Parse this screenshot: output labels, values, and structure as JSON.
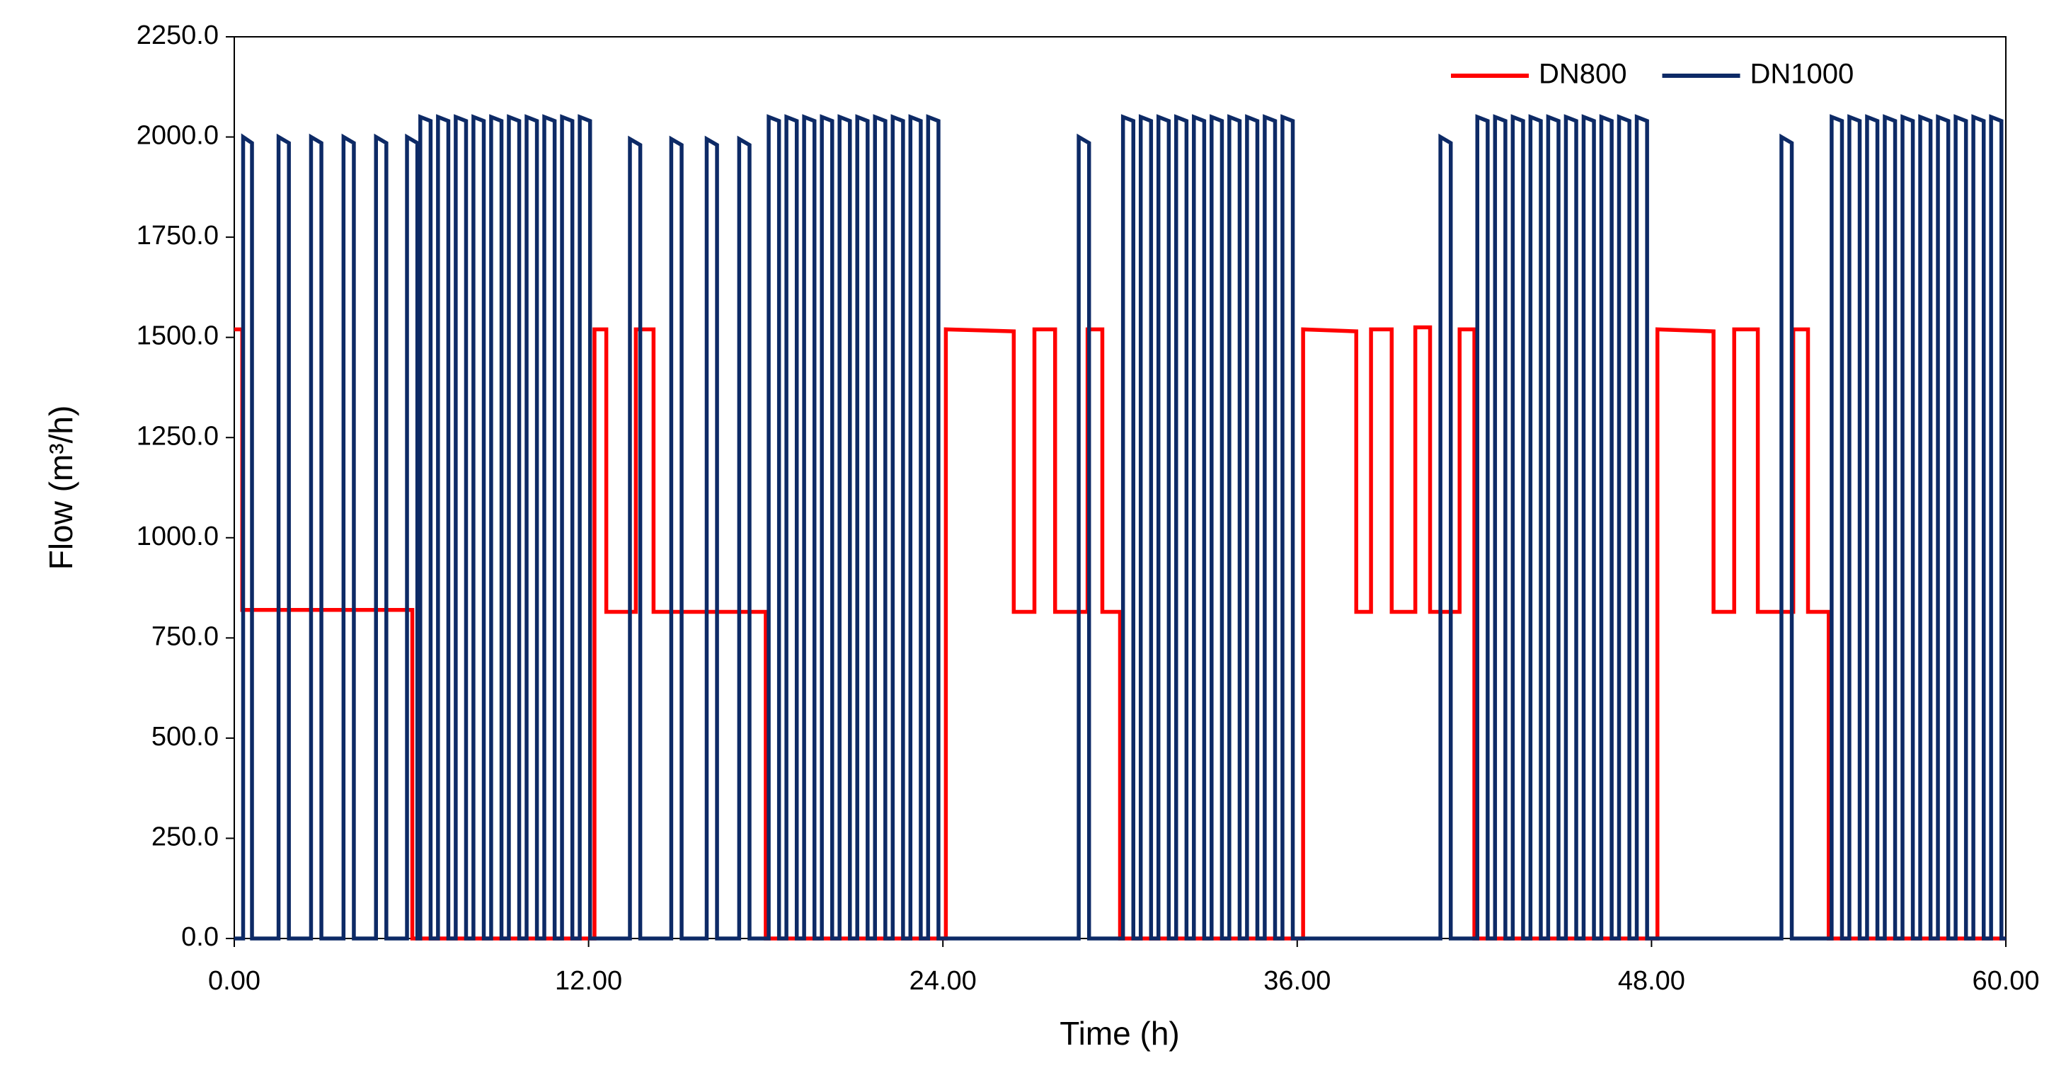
{
  "chart_data": {
    "type": "line",
    "xlabel": "Time (h)",
    "ylabel": "Flow (m³/h)",
    "xlim": [
      0,
      60
    ],
    "ylim": [
      0,
      2250
    ],
    "xticks": [
      {
        "value": 0,
        "label": "0.00"
      },
      {
        "value": 12,
        "label": "12.00"
      },
      {
        "value": 24,
        "label": "24.00"
      },
      {
        "value": 36,
        "label": "36.00"
      },
      {
        "value": 48,
        "label": "48.00"
      },
      {
        "value": 60,
        "label": "60.00"
      }
    ],
    "yticks": [
      {
        "value": 0,
        "label": "0.0"
      },
      {
        "value": 250,
        "label": "250.0"
      },
      {
        "value": 500,
        "label": "500.0"
      },
      {
        "value": 750,
        "label": "750.0"
      },
      {
        "value": 1000,
        "label": "1000.0"
      },
      {
        "value": 1250,
        "label": "1250.0"
      },
      {
        "value": 1500,
        "label": "1500.0"
      },
      {
        "value": 1750,
        "label": "1750.0"
      },
      {
        "value": 2000,
        "label": "2000.0"
      },
      {
        "value": 2250,
        "label": "2250.0"
      }
    ],
    "grid": false,
    "legend": "upper right",
    "series": [
      {
        "name": "DN800",
        "color": "#ff0000",
        "x": [
          0,
          0.27,
          0.27,
          6.03,
          6.03,
          12.2,
          12.2,
          12.6,
          12.6,
          13.6,
          13.6,
          14.2,
          14.2,
          18.0,
          18.0,
          24.1,
          24.1,
          26.4,
          26.4,
          27.1,
          27.1,
          27.8,
          27.8,
          28.9,
          28.9,
          29.4,
          29.4,
          30.0,
          30.0,
          36.2,
          36.2,
          38.0,
          38.0,
          38.5,
          38.5,
          39.2,
          39.2,
          40.0,
          40.0,
          40.5,
          40.5,
          41.5,
          41.5,
          42.0,
          42.0,
          48.2,
          48.2,
          50.1,
          50.1,
          50.8,
          50.8,
          51.6,
          51.6,
          52.8,
          52.8,
          53.3,
          53.3,
          54.0,
          54.0,
          60
        ],
        "values": [
          1520,
          1520,
          820,
          820,
          0,
          0,
          1520,
          1520,
          815,
          815,
          1520,
          1520,
          815,
          815,
          0,
          0,
          1520,
          1515,
          815,
          815,
          1520,
          1520,
          815,
          815,
          1520,
          1520,
          815,
          815,
          0,
          0,
          1520,
          1515,
          815,
          815,
          1520,
          1520,
          815,
          815,
          1525,
          1525,
          815,
          815,
          1520,
          1520,
          0,
          0,
          1520,
          1515,
          815,
          815,
          1520,
          1520,
          815,
          815,
          1520,
          1520,
          815,
          815,
          0,
          0
        ]
      },
      {
        "name": "DN1000",
        "color": "#0d2a66",
        "x": [
          0,
          0.3,
          0.3,
          0.6,
          0.6,
          1.5,
          1.5,
          1.85,
          1.85,
          2.6,
          2.6,
          2.95,
          2.95,
          3.7,
          3.7,
          4.05,
          4.05,
          4.8,
          4.8,
          5.15,
          5.15,
          5.85,
          5.85,
          6.2,
          6.2,
          6.3,
          6.3,
          6.65,
          6.65,
          6.9,
          6.9,
          7.25,
          7.25,
          7.5,
          7.5,
          7.85,
          7.85,
          8.1,
          8.1,
          8.45,
          8.45,
          8.7,
          8.7,
          9.05,
          9.05,
          9.3,
          9.3,
          9.65,
          9.65,
          9.9,
          9.9,
          10.25,
          10.25,
          10.5,
          10.5,
          10.85,
          10.85,
          11.1,
          11.1,
          11.45,
          11.45,
          11.7,
          11.7,
          12.05,
          12.05,
          13.4,
          13.4,
          13.75,
          13.75,
          14.8,
          14.8,
          15.15,
          15.15,
          16.0,
          16.0,
          16.35,
          16.35,
          17.1,
          17.1,
          17.45,
          17.45,
          18.1,
          18.1,
          18.45,
          18.45,
          18.7,
          18.7,
          19.05,
          19.05,
          19.3,
          19.3,
          19.65,
          19.65,
          19.9,
          19.9,
          20.25,
          20.25,
          20.5,
          20.5,
          20.85,
          20.85,
          21.1,
          21.1,
          21.45,
          21.45,
          21.7,
          21.7,
          22.05,
          22.05,
          22.3,
          22.3,
          22.65,
          22.65,
          22.9,
          22.9,
          23.25,
          23.25,
          23.5,
          23.5,
          23.85,
          23.85,
          28.6,
          28.6,
          28.95,
          28.95,
          30.1,
          30.1,
          30.45,
          30.45,
          30.7,
          30.7,
          31.05,
          31.05,
          31.3,
          31.3,
          31.65,
          31.65,
          31.9,
          31.9,
          32.25,
          32.25,
          32.5,
          32.5,
          32.85,
          32.85,
          33.1,
          33.1,
          33.45,
          33.45,
          33.7,
          33.7,
          34.05,
          34.05,
          34.3,
          34.3,
          34.65,
          34.65,
          34.9,
          34.9,
          35.25,
          35.25,
          35.5,
          35.5,
          35.85,
          35.85,
          40.85,
          40.85,
          41.2,
          41.2,
          42.1,
          42.1,
          42.45,
          42.45,
          42.7,
          42.7,
          43.05,
          43.05,
          43.3,
          43.3,
          43.65,
          43.65,
          43.9,
          43.9,
          44.25,
          44.25,
          44.5,
          44.5,
          44.85,
          44.85,
          45.1,
          45.1,
          45.45,
          45.45,
          45.7,
          45.7,
          46.05,
          46.05,
          46.3,
          46.3,
          46.65,
          46.65,
          46.9,
          46.9,
          47.25,
          47.25,
          47.5,
          47.5,
          47.85,
          47.85,
          52.4,
          52.4,
          52.75,
          52.75,
          54.1,
          54.1,
          54.45,
          54.45,
          54.7,
          54.7,
          55.05,
          55.05,
          55.3,
          55.3,
          55.65,
          55.65,
          55.9,
          55.9,
          56.25,
          56.25,
          56.5,
          56.5,
          56.85,
          56.85,
          57.1,
          57.1,
          57.45,
          57.45,
          57.7,
          57.7,
          58.05,
          58.05,
          58.3,
          58.3,
          58.65,
          58.65,
          58.9,
          58.9,
          59.25,
          59.25,
          59.5,
          59.5,
          59.85,
          59.85,
          60
        ],
        "values": [
          0,
          0,
          2000,
          1985,
          0,
          0,
          2000,
          1985,
          0,
          0,
          2000,
          1985,
          0,
          0,
          2000,
          1985,
          0,
          0,
          2000,
          1985,
          0,
          0,
          2000,
          1985,
          0,
          0,
          2050,
          2040,
          0,
          0,
          2050,
          2040,
          0,
          0,
          2050,
          2040,
          0,
          0,
          2050,
          2040,
          0,
          0,
          2050,
          2040,
          0,
          0,
          2050,
          2040,
          0,
          0,
          2050,
          2040,
          0,
          0,
          2050,
          2040,
          0,
          0,
          2050,
          2040,
          0,
          0,
          2050,
          2040,
          0,
          0,
          1995,
          1980,
          0,
          0,
          1995,
          1980,
          0,
          0,
          1995,
          1980,
          0,
          0,
          1995,
          1980,
          0,
          0,
          2050,
          2040,
          0,
          0,
          2050,
          2040,
          0,
          0,
          2050,
          2040,
          0,
          0,
          2050,
          2040,
          0,
          0,
          2050,
          2040,
          0,
          0,
          2050,
          2040,
          0,
          0,
          2050,
          2040,
          0,
          0,
          2050,
          2040,
          0,
          0,
          2050,
          2040,
          0,
          0,
          2050,
          2040,
          0,
          0,
          2000,
          1985,
          0,
          0,
          2050,
          2040,
          0,
          0,
          2050,
          2040,
          0,
          0,
          2050,
          2040,
          0,
          0,
          2050,
          2040,
          0,
          0,
          2050,
          2040,
          0,
          0,
          2050,
          2040,
          0,
          0,
          2050,
          2040,
          0,
          0,
          2050,
          2040,
          0,
          0,
          2050,
          2040,
          0,
          0,
          2050,
          2040,
          0,
          0,
          2000,
          1985,
          0,
          0,
          2050,
          2040,
          0,
          0,
          2050,
          2040,
          0,
          0,
          2050,
          2040,
          0,
          0,
          2050,
          2040,
          0,
          0,
          2050,
          2040,
          0,
          0,
          2050,
          2040,
          0,
          0,
          2050,
          2040,
          0,
          0,
          2050,
          2040,
          0,
          0,
          2050,
          2040,
          0,
          0,
          2050,
          2040,
          0,
          0,
          2000,
          1985,
          0,
          0,
          2050,
          2040,
          0,
          0,
          2050,
          2040,
          0,
          0,
          2050,
          2040,
          0,
          0,
          2050,
          2040,
          0,
          0,
          2050,
          2040,
          0,
          0,
          2050,
          2040,
          0,
          0,
          2050,
          2040,
          0,
          0,
          2050,
          2040,
          0,
          0,
          2050,
          2040,
          0,
          0,
          2050,
          2040,
          0,
          0
        ]
      }
    ]
  }
}
